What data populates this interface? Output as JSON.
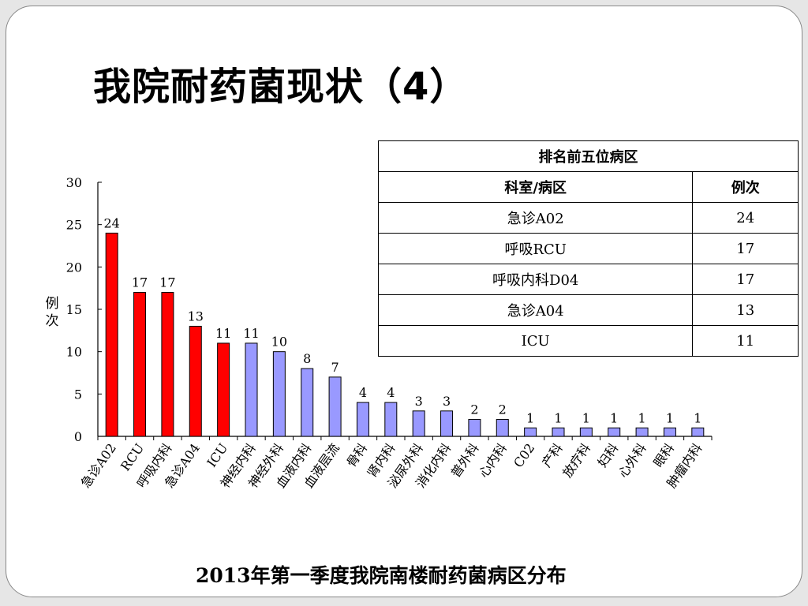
{
  "page": {
    "title": "我院耐药菌现状（4）",
    "caption": "2013年第一季度我院南楼耐药菌病区分布"
  },
  "colors": {
    "top5": "#ff0000",
    "others": "#9999ff",
    "stroke": "#000000"
  },
  "chart_data": {
    "type": "bar",
    "ylabel": "例次",
    "ylim": [
      0,
      30
    ],
    "yticks": [
      0,
      5,
      10,
      15,
      20,
      25,
      30
    ],
    "categories": [
      "急诊A02",
      "RCU",
      "呼吸内科",
      "急诊A04",
      "ICU",
      "神经内科",
      "神经外科",
      "血液内科",
      "血液层流",
      "骨科",
      "肾内科",
      "泌尿外科",
      "消化内科",
      "普外科",
      "心内科",
      "C02",
      "产科",
      "放疗科",
      "妇科",
      "心外科",
      "眼科",
      "肿瘤内科"
    ],
    "values": [
      24,
      17,
      17,
      13,
      11,
      11,
      10,
      8,
      7,
      4,
      4,
      3,
      3,
      2,
      2,
      1,
      1,
      1,
      1,
      1,
      1,
      1
    ],
    "highlight_count": 5,
    "data_labels": true
  },
  "table": {
    "title": "排名前五位病区",
    "headers": [
      "科室/病区",
      "例次"
    ],
    "rows": [
      [
        "急诊A02",
        "24"
      ],
      [
        "呼吸RCU",
        "17"
      ],
      [
        "呼吸内科D04",
        "17"
      ],
      [
        "急诊A04",
        "13"
      ],
      [
        "ICU",
        "11"
      ]
    ]
  }
}
